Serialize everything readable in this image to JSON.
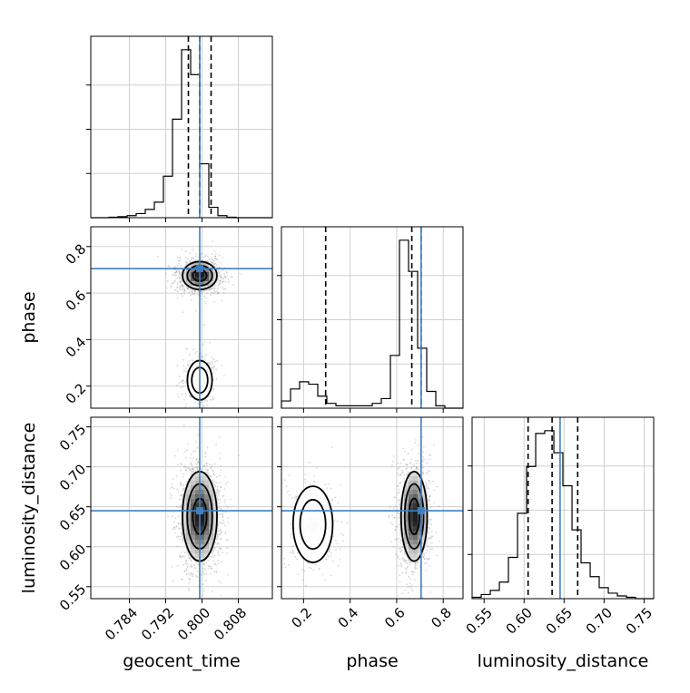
{
  "chart_data": {
    "type": "corner",
    "grid": true,
    "colors": {
      "truth": "#3f7fbf",
      "hist": "#000000",
      "quantile": "#000000",
      "scatter": "#8c8c8c"
    },
    "parameters": [
      {
        "name": "geocent_time",
        "label": "geocent_time",
        "range": [
          0.7755,
          0.8155
        ],
        "ticks": [
          0.784,
          0.792,
          0.8,
          0.808
        ],
        "tick_labels": [
          "0.784",
          "0.792",
          "0.800",
          "0.808"
        ],
        "truth": 0.7995,
        "quantiles": [
          0.797,
          0.7995,
          0.802
        ]
      },
      {
        "name": "phase",
        "label": "phase",
        "range": [
          0.105,
          0.885
        ],
        "ticks": [
          0.2,
          0.4,
          0.6,
          0.8
        ],
        "tick_labels": [
          "0.2",
          "0.4",
          "0.6",
          "0.8"
        ],
        "truth": 0.705,
        "quantiles": [
          0.295,
          0.665,
          0.705
        ]
      },
      {
        "name": "luminosity_distance",
        "label": "luminosity_distance",
        "range": [
          0.535,
          0.762
        ],
        "ticks": [
          0.55,
          0.6,
          0.65,
          0.7,
          0.75
        ],
        "tick_labels": [
          "0.55",
          "0.60",
          "0.65",
          "0.70",
          "0.75"
        ],
        "truth": 0.645,
        "quantiles": [
          0.605,
          0.635,
          0.667
        ]
      }
    ],
    "histograms": {
      "geocent_time": {
        "bin_edges": [
          0.7755,
          0.7775,
          0.7795,
          0.7815,
          0.7835,
          0.7855,
          0.7875,
          0.7895,
          0.7915,
          0.7935,
          0.7955,
          0.7975,
          0.7995,
          0.8015,
          0.8035,
          0.8055,
          0.8075,
          0.8095,
          0.8115,
          0.8135,
          0.8155
        ],
        "counts": [
          0,
          0,
          0.5,
          1,
          2,
          4,
          8,
          15,
          40,
          95,
          162,
          138,
          52,
          10,
          2,
          0.5,
          0,
          0,
          0,
          0
        ]
      },
      "phase": {
        "bin_edges": [
          0.105,
          0.144,
          0.183,
          0.222,
          0.261,
          0.3,
          0.339,
          0.378,
          0.417,
          0.456,
          0.495,
          0.534,
          0.573,
          0.612,
          0.651,
          0.69,
          0.729,
          0.768,
          0.807,
          0.846,
          0.885
        ],
        "counts": [
          3,
          8,
          11,
          10,
          5,
          2,
          1,
          1,
          1,
          1,
          2,
          4,
          22,
          70,
          57,
          25,
          7,
          1,
          0,
          0
        ]
      },
      "luminosity_distance": {
        "bin_edges": [
          0.535,
          0.5464,
          0.5577,
          0.5691,
          0.5804,
          0.5918,
          0.6031,
          0.6145,
          0.6258,
          0.6372,
          0.6485,
          0.6599,
          0.6712,
          0.6826,
          0.6939,
          0.7053,
          0.7166,
          0.728,
          0.7393,
          0.7507,
          0.762
        ],
        "counts": [
          1,
          3,
          6,
          12,
          30,
          62,
          96,
          120,
          122,
          106,
          82,
          50,
          26,
          16,
          8,
          4,
          2,
          1,
          0,
          0
        ]
      }
    },
    "modes_2d": {
      "phase_vs_geocent_time": [
        {
          "x": 0.7995,
          "y": 0.675,
          "sx": 0.0019,
          "sy": 0.03,
          "weight": 0.82
        },
        {
          "x": 0.7995,
          "y": 0.225,
          "sx": 0.0016,
          "sy": 0.05,
          "weight": 0.18
        }
      ],
      "luminosity_distance_vs_geocent_time": [
        {
          "x": 0.7995,
          "y": 0.638,
          "sx": 0.0019,
          "sy": 0.028,
          "weight": 1.0
        }
      ],
      "luminosity_distance_vs_phase": [
        {
          "x": 0.675,
          "y": 0.638,
          "sx": 0.028,
          "sy": 0.028,
          "weight": 0.82
        },
        {
          "x": 0.24,
          "y": 0.628,
          "sx": 0.05,
          "sy": 0.028,
          "weight": 0.18
        }
      ]
    }
  }
}
